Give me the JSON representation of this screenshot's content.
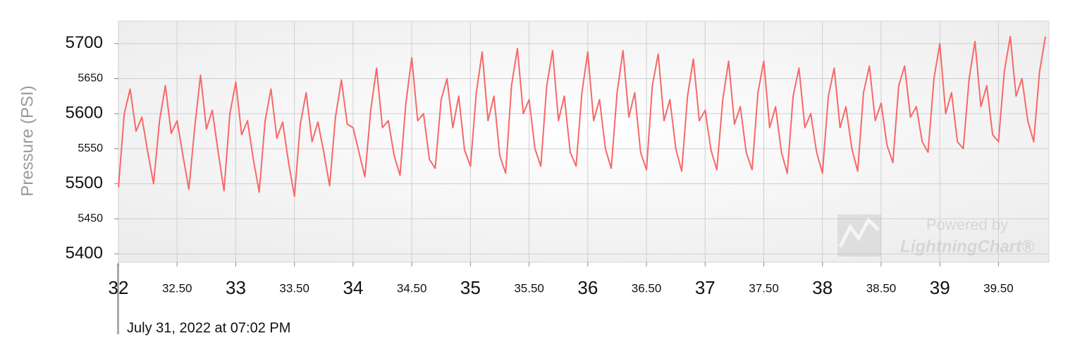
{
  "chart_data": {
    "type": "line",
    "y_label": "Pressure (PSI)",
    "x_label": "July 31, 2022 at 07:02 PM",
    "watermark": {
      "line1": "Powered by",
      "line2": "LightningChart®"
    },
    "color": "#f86868",
    "grid": true,
    "xlim": [
      32,
      39.93
    ],
    "ylim": [
      5388,
      5732
    ],
    "xticks": [
      32,
      {
        "value": 32.5,
        "label": "32.50"
      },
      33,
      {
        "value": 33.5,
        "label": "33.50"
      },
      34,
      {
        "value": 34.5,
        "label": "34.50"
      },
      35,
      {
        "value": 35.5,
        "label": "35.50"
      },
      36,
      {
        "value": 36.5,
        "label": "36.50"
      },
      37,
      {
        "value": 37.5,
        "label": "37.50"
      },
      38,
      {
        "value": 38.5,
        "label": "38.50"
      },
      39,
      {
        "value": 39.5,
        "label": "39.50"
      }
    ],
    "yticks": [
      5400,
      5450,
      5500,
      5550,
      5600,
      5650,
      5700
    ],
    "x": [
      32,
      32.05,
      32.1,
      32.15,
      32.2,
      32.25,
      32.3,
      32.35,
      32.4,
      32.45,
      32.5,
      32.55,
      32.6,
      32.65,
      32.7,
      32.75,
      32.8,
      32.85,
      32.9,
      32.95,
      33,
      33.05,
      33.1,
      33.15,
      33.2,
      33.25,
      33.3,
      33.35,
      33.4,
      33.45,
      33.5,
      33.55,
      33.6,
      33.65,
      33.7,
      33.75,
      33.8,
      33.85,
      33.9,
      33.95,
      34,
      34.05,
      34.1,
      34.15,
      34.2,
      34.25,
      34.3,
      34.35,
      34.4,
      34.45,
      34.5,
      34.55,
      34.6,
      34.65,
      34.7,
      34.75,
      34.8,
      34.85,
      34.9,
      34.95,
      35,
      35.05,
      35.1,
      35.15,
      35.2,
      35.25,
      35.3,
      35.35,
      35.4,
      35.45,
      35.5,
      35.55,
      35.6,
      35.65,
      35.7,
      35.75,
      35.8,
      35.85,
      35.9,
      35.95,
      36,
      36.05,
      36.1,
      36.15,
      36.2,
      36.25,
      36.3,
      36.35,
      36.4,
      36.45,
      36.5,
      36.55,
      36.6,
      36.65,
      36.7,
      36.75,
      36.8,
      36.85,
      36.9,
      36.95,
      37,
      37.05,
      37.1,
      37.15,
      37.2,
      37.25,
      37.3,
      37.35,
      37.4,
      37.45,
      37.5,
      37.55,
      37.6,
      37.65,
      37.7,
      37.75,
      37.8,
      37.85,
      37.9,
      37.95,
      38,
      38.05,
      38.1,
      38.15,
      38.2,
      38.25,
      38.3,
      38.35,
      38.4,
      38.45,
      38.5,
      38.55,
      38.6,
      38.65,
      38.7,
      38.75,
      38.8,
      38.85,
      38.9,
      38.95,
      39,
      39.05,
      39.1,
      39.15,
      39.2,
      39.25,
      39.3,
      39.35,
      39.4,
      39.45,
      39.5,
      39.55,
      39.6,
      39.65,
      39.7,
      39.75,
      39.8,
      39.85,
      39.9
    ],
    "values": [
      5495,
      5600,
      5635,
      5575,
      5595,
      5545,
      5500,
      5590,
      5640,
      5572,
      5590,
      5540,
      5492,
      5580,
      5655,
      5578,
      5605,
      5545,
      5490,
      5600,
      5645,
      5570,
      5590,
      5535,
      5488,
      5590,
      5635,
      5565,
      5588,
      5530,
      5482,
      5585,
      5630,
      5560,
      5588,
      5545,
      5497,
      5595,
      5648,
      5585,
      5580,
      5545,
      5510,
      5605,
      5665,
      5580,
      5590,
      5540,
      5512,
      5615,
      5680,
      5590,
      5600,
      5535,
      5522,
      5620,
      5650,
      5580,
      5625,
      5548,
      5525,
      5630,
      5688,
      5590,
      5625,
      5540,
      5515,
      5640,
      5693,
      5600,
      5620,
      5550,
      5525,
      5640,
      5690,
      5590,
      5625,
      5545,
      5525,
      5630,
      5688,
      5590,
      5620,
      5550,
      5522,
      5630,
      5690,
      5595,
      5630,
      5545,
      5520,
      5640,
      5685,
      5590,
      5620,
      5550,
      5518,
      5625,
      5678,
      5590,
      5605,
      5548,
      5520,
      5620,
      5675,
      5585,
      5610,
      5545,
      5520,
      5630,
      5675,
      5580,
      5610,
      5545,
      5515,
      5625,
      5665,
      5580,
      5600,
      5545,
      5515,
      5625,
      5665,
      5580,
      5610,
      5550,
      5518,
      5630,
      5668,
      5590,
      5615,
      5555,
      5530,
      5640,
      5668,
      5595,
      5610,
      5560,
      5545,
      5650,
      5700,
      5600,
      5630,
      5560,
      5550,
      5650,
      5703,
      5610,
      5640,
      5570,
      5560,
      5660,
      5710,
      5625,
      5650,
      5590,
      5560,
      5660,
      5710
    ]
  }
}
